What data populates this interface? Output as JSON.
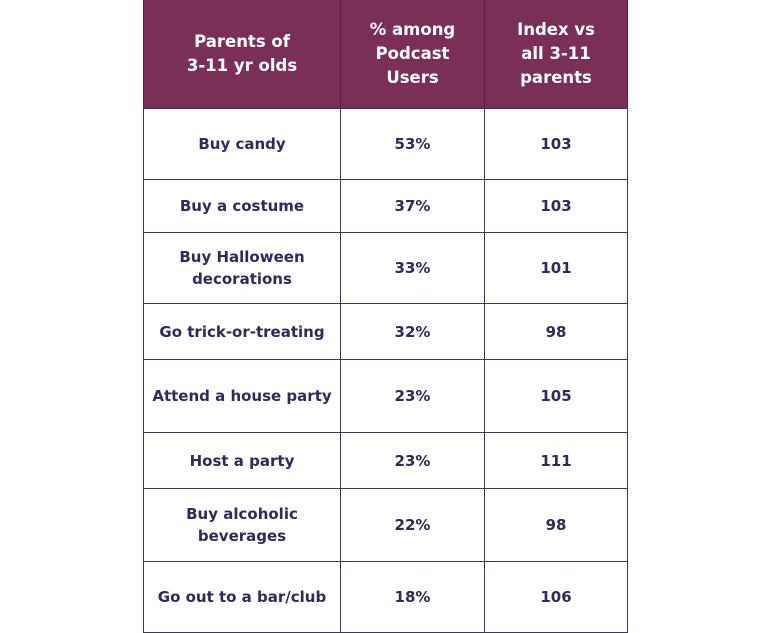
{
  "chart_data": {
    "type": "table",
    "columns": [
      "Parents of\n3-11 yr olds",
      "% among\nPodcast\nUsers",
      "Index vs\nall 3-11\nparents"
    ],
    "rows": [
      {
        "activity": "Buy candy",
        "pct": "53%",
        "index": "103"
      },
      {
        "activity": "Buy a costume",
        "pct": "37%",
        "index": "103"
      },
      {
        "activity": "Buy Halloween\ndecorations",
        "pct": "33%",
        "index": "101"
      },
      {
        "activity": "Go trick-or-treating",
        "pct": "32%",
        "index": "98"
      },
      {
        "activity": "Attend a house party",
        "pct": "23%",
        "index": "105"
      },
      {
        "activity": "Host a party",
        "pct": "23%",
        "index": "111"
      },
      {
        "activity": "Buy alcoholic\nbeverages",
        "pct": "22%",
        "index": "98"
      },
      {
        "activity": "Go out to a bar/club",
        "pct": "18%",
        "index": "106"
      }
    ]
  },
  "colors": {
    "header_bg": "#7a2f57",
    "header_text": "#ffffff",
    "cell_text": "#2f2a5c",
    "border": "#3a3566"
  }
}
